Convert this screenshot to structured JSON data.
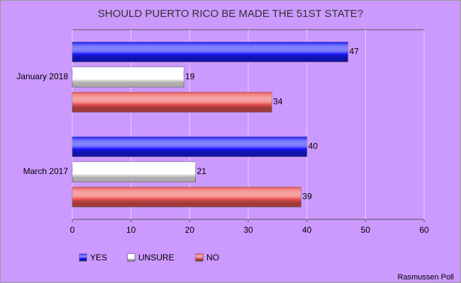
{
  "chart_data": {
    "type": "bar",
    "orientation": "horizontal",
    "title": "SHOULD PUERTO RICO BE MADE THE 51ST STATE?",
    "categories": [
      "January 2018",
      "March 2017"
    ],
    "series": [
      {
        "name": "YES",
        "color": "#1a1aff",
        "values": [
          47,
          40
        ]
      },
      {
        "name": "UNSURE",
        "color": "#ffffff",
        "values": [
          19,
          21
        ]
      },
      {
        "name": "NO",
        "color": "#ee5555",
        "values": [
          34,
          39
        ]
      }
    ],
    "xlim": [
      0,
      60
    ],
    "xticks": [
      0,
      10,
      20,
      30,
      40,
      50,
      60
    ],
    "grid": true,
    "source": "Rasmussen Poll"
  }
}
